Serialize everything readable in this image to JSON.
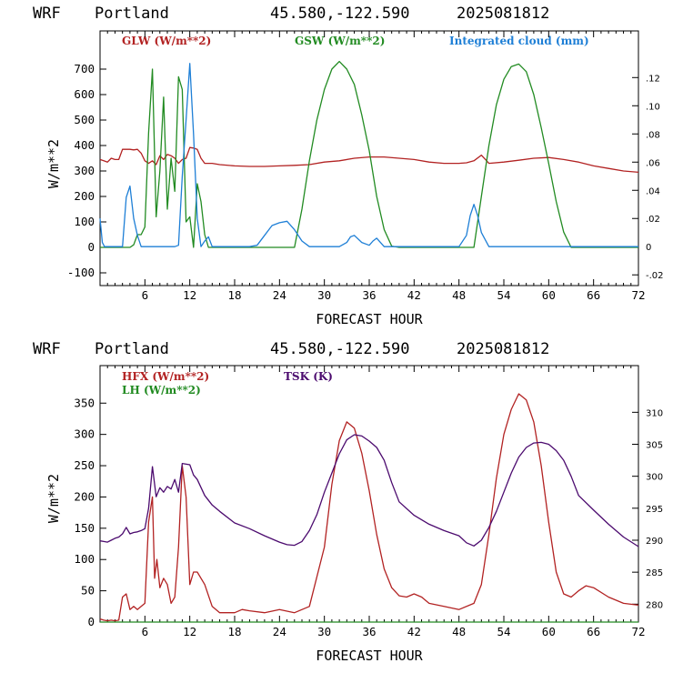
{
  "chart_data": [
    {
      "type": "line",
      "header": {
        "model": "WRF",
        "location": "Portland",
        "coords": "45.580,-122.590",
        "run": "2025081812"
      },
      "xlabel": "FORECAST HOUR",
      "ylabel": "W/m**2",
      "xlim": [
        0,
        72
      ],
      "ylim": [
        -150,
        850
      ],
      "xticks": [
        "6",
        "12",
        "18",
        "24",
        "30",
        "36",
        "42",
        "48",
        "54",
        "60",
        "66",
        "72"
      ],
      "yticks": [
        "-100",
        "0",
        "100",
        "200",
        "300",
        "400",
        "500",
        "600",
        "700"
      ],
      "y2lim": [
        -0.0276,
        0.1531
      ],
      "y2ticks": [
        "-.02",
        "0",
        ".02",
        ".04",
        ".06",
        ".08",
        ".10",
        ".12"
      ],
      "series": [
        {
          "name": "GLW (W/m**2)",
          "color": "#b22222",
          "axis": "left",
          "x": [
            0,
            0.5,
            1,
            1.5,
            2,
            2.5,
            3,
            3.5,
            4,
            4.5,
            5,
            5.5,
            6,
            6.5,
            7,
            7.5,
            8,
            8.5,
            9,
            9.5,
            10,
            10.5,
            11,
            11.5,
            12,
            12.5,
            13,
            13.5,
            14,
            15,
            16,
            18,
            20,
            22,
            24,
            26,
            28,
            30,
            32,
            34,
            36,
            38,
            40,
            42,
            44,
            46,
            48,
            49,
            50,
            51,
            52,
            54,
            56,
            58,
            60,
            62,
            64,
            66,
            68,
            70,
            72
          ],
          "y": [
            345,
            340,
            335,
            350,
            345,
            345,
            385,
            385,
            385,
            383,
            385,
            370,
            340,
            330,
            340,
            325,
            360,
            345,
            365,
            360,
            350,
            330,
            345,
            350,
            392,
            390,
            385,
            350,
            330,
            330,
            325,
            320,
            318,
            318,
            320,
            322,
            325,
            335,
            340,
            350,
            355,
            355,
            350,
            345,
            335,
            330,
            330,
            332,
            340,
            362,
            330,
            335,
            342,
            350,
            353,
            345,
            335,
            320,
            310,
            300,
            295
          ]
        },
        {
          "name": "GSW (W/m**2)",
          "color": "#228b22",
          "axis": "left",
          "x": [
            0,
            0.5,
            1,
            1.5,
            2,
            2.5,
            3,
            3.5,
            4,
            4.5,
            5,
            5.5,
            6,
            6.5,
            7,
            7.5,
            8,
            8.5,
            9,
            9.5,
            10,
            10.5,
            11,
            11.5,
            12,
            12.5,
            13,
            13.5,
            14,
            14.5,
            15,
            18,
            20,
            22,
            24,
            25,
            26,
            27,
            28,
            29,
            30,
            31,
            32,
            33,
            34,
            35,
            36,
            37,
            38,
            39,
            40,
            44,
            48,
            49,
            50,
            51,
            52,
            53,
            54,
            55,
            56,
            57,
            58,
            59,
            60,
            61,
            62,
            63,
            64,
            68,
            72
          ],
          "y": [
            0,
            0,
            0,
            0,
            0,
            0,
            0,
            0,
            0,
            10,
            50,
            50,
            80,
            450,
            700,
            120,
            300,
            590,
            150,
            350,
            220,
            670,
            620,
            100,
            120,
            0,
            250,
            180,
            50,
            0,
            0,
            0,
            0,
            0,
            0,
            0,
            0,
            150,
            340,
            500,
            620,
            700,
            730,
            700,
            640,
            520,
            380,
            200,
            70,
            5,
            0,
            0,
            0,
            0,
            0,
            200,
            400,
            560,
            660,
            710,
            720,
            690,
            600,
            470,
            330,
            180,
            60,
            0,
            0,
            0,
            0
          ]
        },
        {
          "name": "Integrated cloud (mm)",
          "color": "#1e7fd6",
          "axis": "right",
          "x": [
            0,
            0.3,
            0.6,
            1,
            1.5,
            2,
            3,
            3.5,
            4,
            4.5,
            5,
            5.5,
            6,
            6.5,
            7,
            8,
            9,
            10,
            10.5,
            11,
            11.5,
            12,
            12.5,
            13,
            13.5,
            14,
            14.5,
            15,
            16,
            18,
            20,
            21,
            22,
            23,
            24,
            25,
            26,
            27,
            28,
            30,
            32,
            33,
            33.5,
            34,
            35,
            36,
            36.5,
            37,
            37.5,
            38,
            40,
            44,
            48,
            49,
            49.5,
            50,
            50.5,
            51,
            52,
            54,
            56,
            60,
            64,
            68,
            72
          ],
          "y": [
            0.02,
            0.003,
            0,
            0,
            0,
            0,
            0,
            0.035,
            0.043,
            0.02,
            0.008,
            0,
            0,
            0,
            0,
            0,
            0,
            0,
            0.001,
            0.05,
            0.09,
            0.13,
            0.08,
            0.02,
            0,
            0.004,
            0.007,
            0,
            0,
            0,
            0,
            0.001,
            0.008,
            0.015,
            0.017,
            0.018,
            0.012,
            0.004,
            0,
            0,
            0,
            0.003,
            0.007,
            0.008,
            0.003,
            0.001,
            0.004,
            0.006,
            0.003,
            0,
            0,
            0,
            0,
            0.008,
            0.022,
            0.03,
            0.022,
            0.01,
            0,
            0,
            0,
            0,
            0,
            0,
            0
          ]
        }
      ]
    },
    {
      "type": "line",
      "header": {
        "model": "WRF",
        "location": "Portland",
        "coords": "45.580,-122.590",
        "run": "2025081812"
      },
      "xlabel": "FORECAST HOUR",
      "ylabel": "W/m**2",
      "xlim": [
        0,
        72
      ],
      "ylim": [
        0,
        410
      ],
      "xticks": [
        "6",
        "12",
        "18",
        "24",
        "30",
        "36",
        "42",
        "48",
        "54",
        "60",
        "66",
        "72"
      ],
      "yticks": [
        "0",
        "50",
        "100",
        "150",
        "200",
        "250",
        "300",
        "350"
      ],
      "y2lim": [
        277.2,
        317.3
      ],
      "y2ticks": [
        "280",
        "285",
        "290",
        "295",
        "300",
        "305",
        "310"
      ],
      "series": [
        {
          "name": "HFX (W/m**2)",
          "color": "#b22222",
          "axis": "left",
          "x": [
            0,
            0.5,
            1,
            1.5,
            2,
            2.5,
            3,
            3.5,
            4,
            4.5,
            5,
            5.5,
            6,
            6.5,
            7,
            7.3,
            7.6,
            8,
            8.5,
            9,
            9.5,
            10,
            10.5,
            11,
            11.5,
            12,
            12.5,
            13,
            14,
            15,
            16,
            17,
            18,
            19,
            20,
            22,
            24,
            26,
            28,
            30,
            31,
            32,
            33,
            34,
            35,
            36,
            37,
            38,
            39,
            40,
            41,
            42,
            43,
            44,
            46,
            48,
            50,
            51,
            52,
            53,
            54,
            55,
            56,
            57,
            58,
            59,
            60,
            61,
            62,
            63,
            64,
            65,
            66,
            68,
            70,
            72
          ],
          "y": [
            5,
            3,
            2,
            3,
            2,
            3,
            40,
            45,
            20,
            25,
            20,
            25,
            30,
            160,
            200,
            70,
            100,
            55,
            70,
            60,
            30,
            40,
            120,
            250,
            200,
            60,
            80,
            80,
            60,
            25,
            15,
            15,
            15,
            20,
            18,
            15,
            20,
            15,
            25,
            120,
            220,
            290,
            320,
            310,
            270,
            210,
            140,
            85,
            55,
            42,
            40,
            45,
            40,
            30,
            25,
            20,
            30,
            60,
            140,
            230,
            300,
            340,
            365,
            355,
            320,
            250,
            160,
            80,
            45,
            40,
            50,
            58,
            55,
            40,
            30,
            27
          ]
        },
        {
          "name": "LH (W/m**2)",
          "color": "#228b22",
          "axis": "left",
          "x": [
            0,
            72
          ],
          "y": [
            0,
            0
          ]
        },
        {
          "name": "TSK (K)",
          "color": "#4b0a6e",
          "axis": "right",
          "x": [
            0,
            0.5,
            1,
            1.5,
            2,
            2.5,
            3,
            3.5,
            4,
            4.5,
            5,
            5.5,
            6,
            6.5,
            7,
            7.5,
            8,
            8.5,
            9,
            9.5,
            10,
            10.5,
            11,
            12,
            12.5,
            13,
            14,
            15,
            16,
            18,
            20,
            22,
            24,
            25,
            26,
            27,
            28,
            29,
            30,
            31,
            32,
            33,
            34,
            35,
            36,
            37,
            38,
            39,
            40,
            42,
            44,
            46,
            48,
            49,
            50,
            51,
            52,
            53,
            54,
            55,
            56,
            57,
            58,
            59,
            60,
            61,
            62,
            63,
            64,
            66,
            68,
            70,
            72
          ],
          "y": [
            289.9,
            289.8,
            289.7,
            290,
            290.3,
            290.5,
            291,
            292,
            291,
            291.2,
            291.3,
            291.5,
            291.8,
            295,
            301.5,
            296.8,
            298.2,
            297.5,
            298.4,
            298,
            299.5,
            297.5,
            302,
            301.8,
            300.2,
            299.5,
            297,
            295.5,
            294.5,
            292.7,
            291.8,
            290.7,
            289.7,
            289.3,
            289.2,
            289.8,
            291.5,
            294,
            297.5,
            300.5,
            303.5,
            305.7,
            306.5,
            306.3,
            305.5,
            304.5,
            302.5,
            299,
            296,
            293.9,
            292.5,
            291.5,
            290.7,
            289.6,
            289.1,
            290,
            292,
            294.5,
            297.5,
            300.5,
            303,
            304.5,
            305.2,
            305.3,
            305,
            304,
            302.5,
            300,
            297,
            294.7,
            292.5,
            290.5,
            289
          ]
        }
      ]
    }
  ]
}
